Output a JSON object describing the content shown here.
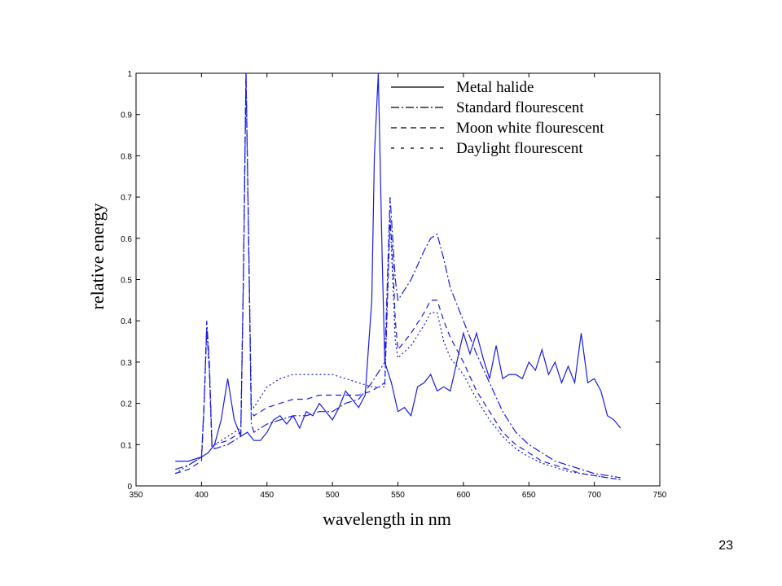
{
  "page": {
    "number": "23"
  },
  "colors": {
    "series": "#1a1ae6",
    "axis": "#000000",
    "background": "#ffffff"
  },
  "chart_data": {
    "type": "line",
    "title": "",
    "xlabel": "wavelength in nm",
    "ylabel": "relative energy",
    "xlim": [
      350,
      750
    ],
    "ylim": [
      0,
      1
    ],
    "xticks": [
      350,
      400,
      450,
      500,
      550,
      600,
      650,
      700,
      750
    ],
    "yticks": [
      0,
      0.1,
      0.2,
      0.3,
      0.4,
      0.5,
      0.6,
      0.7,
      0.8,
      0.9,
      1
    ],
    "grid": false,
    "legend_position": "top-right",
    "series": [
      {
        "name": "Metal halide",
        "style": "solid",
        "x": [
          380,
          390,
          400,
          405,
          410,
          415,
          420,
          425,
          430,
          435,
          440,
          445,
          450,
          455,
          460,
          465,
          470,
          475,
          480,
          485,
          490,
          495,
          500,
          505,
          510,
          515,
          520,
          525,
          530,
          532,
          535,
          538,
          540,
          545,
          550,
          555,
          560,
          565,
          570,
          575,
          580,
          585,
          590,
          595,
          600,
          605,
          610,
          615,
          620,
          625,
          630,
          635,
          640,
          645,
          650,
          655,
          660,
          665,
          670,
          675,
          680,
          685,
          690,
          695,
          700,
          705,
          710,
          715,
          720
        ],
        "y": [
          0.06,
          0.06,
          0.07,
          0.08,
          0.1,
          0.16,
          0.26,
          0.16,
          0.12,
          0.13,
          0.11,
          0.11,
          0.13,
          0.16,
          0.17,
          0.15,
          0.17,
          0.14,
          0.18,
          0.17,
          0.2,
          0.18,
          0.16,
          0.19,
          0.23,
          0.21,
          0.19,
          0.22,
          0.45,
          0.8,
          1.0,
          0.55,
          0.3,
          0.25,
          0.18,
          0.19,
          0.17,
          0.24,
          0.25,
          0.27,
          0.23,
          0.24,
          0.23,
          0.3,
          0.37,
          0.32,
          0.37,
          0.31,
          0.26,
          0.34,
          0.26,
          0.27,
          0.27,
          0.26,
          0.3,
          0.28,
          0.33,
          0.27,
          0.3,
          0.25,
          0.29,
          0.25,
          0.37,
          0.25,
          0.26,
          0.23,
          0.17,
          0.16,
          0.14
        ]
      },
      {
        "name": "Standard flourescent",
        "style": "dashdot",
        "x": [
          380,
          390,
          400,
          402,
          404,
          406,
          408,
          410,
          420,
          430,
          432,
          434,
          436,
          438,
          440,
          450,
          460,
          470,
          480,
          490,
          500,
          510,
          520,
          530,
          540,
          542,
          544,
          546,
          548,
          550,
          560,
          570,
          575,
          580,
          585,
          590,
          600,
          610,
          620,
          630,
          640,
          650,
          660,
          670,
          680,
          690,
          700,
          710,
          720
        ],
        "y": [
          0.04,
          0.05,
          0.07,
          0.2,
          0.4,
          0.3,
          0.1,
          0.09,
          0.1,
          0.12,
          0.5,
          1.0,
          0.6,
          0.15,
          0.13,
          0.15,
          0.16,
          0.17,
          0.17,
          0.18,
          0.18,
          0.2,
          0.21,
          0.25,
          0.3,
          0.5,
          0.7,
          0.6,
          0.5,
          0.45,
          0.5,
          0.57,
          0.6,
          0.61,
          0.55,
          0.48,
          0.4,
          0.32,
          0.25,
          0.18,
          0.13,
          0.1,
          0.08,
          0.06,
          0.05,
          0.04,
          0.03,
          0.025,
          0.02
        ]
      },
      {
        "name": "Moon white flourescent",
        "style": "dashed",
        "x": [
          380,
          390,
          400,
          402,
          404,
          406,
          408,
          410,
          420,
          430,
          432,
          434,
          436,
          438,
          440,
          450,
          460,
          470,
          480,
          490,
          500,
          510,
          520,
          530,
          540,
          542,
          544,
          546,
          548,
          550,
          560,
          570,
          575,
          580,
          585,
          590,
          600,
          610,
          620,
          630,
          640,
          650,
          660,
          670,
          680,
          690,
          700,
          710,
          720
        ],
        "y": [
          0.03,
          0.04,
          0.06,
          0.2,
          0.38,
          0.28,
          0.09,
          0.1,
          0.11,
          0.13,
          0.5,
          1.0,
          0.6,
          0.18,
          0.17,
          0.19,
          0.2,
          0.21,
          0.21,
          0.22,
          0.22,
          0.22,
          0.22,
          0.23,
          0.25,
          0.45,
          0.65,
          0.55,
          0.4,
          0.33,
          0.37,
          0.42,
          0.45,
          0.45,
          0.4,
          0.36,
          0.3,
          0.23,
          0.18,
          0.13,
          0.1,
          0.08,
          0.06,
          0.05,
          0.04,
          0.03,
          0.025,
          0.02,
          0.015
        ]
      },
      {
        "name": "Daylight flourescent",
        "style": "dotted",
        "x": [
          380,
          390,
          400,
          402,
          404,
          406,
          408,
          410,
          420,
          430,
          432,
          434,
          436,
          438,
          440,
          450,
          460,
          470,
          480,
          490,
          500,
          510,
          520,
          530,
          540,
          542,
          544,
          546,
          548,
          550,
          560,
          570,
          575,
          580,
          585,
          590,
          600,
          610,
          620,
          630,
          640,
          650,
          660,
          670,
          680,
          690,
          700,
          710,
          720
        ],
        "y": [
          0.03,
          0.05,
          0.07,
          0.2,
          0.38,
          0.28,
          0.1,
          0.1,
          0.12,
          0.14,
          0.5,
          1.0,
          0.6,
          0.2,
          0.19,
          0.24,
          0.26,
          0.27,
          0.27,
          0.27,
          0.27,
          0.26,
          0.25,
          0.24,
          0.24,
          0.45,
          0.65,
          0.5,
          0.35,
          0.31,
          0.34,
          0.39,
          0.42,
          0.42,
          0.35,
          0.31,
          0.27,
          0.21,
          0.16,
          0.12,
          0.09,
          0.07,
          0.055,
          0.045,
          0.035,
          0.03,
          0.025,
          0.02,
          0.015
        ]
      }
    ]
  }
}
